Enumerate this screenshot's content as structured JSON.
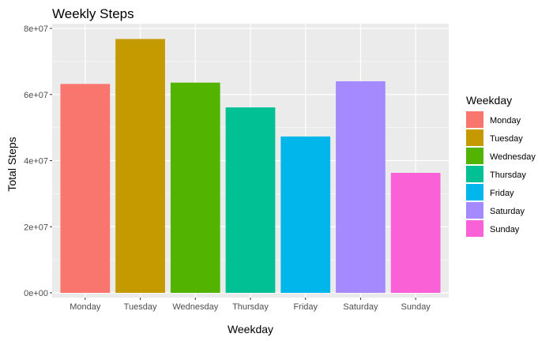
{
  "chart_data": {
    "type": "bar",
    "title": "Weekly Steps",
    "xlabel": "Weekday",
    "ylabel": "Total Steps",
    "categories": [
      "Monday",
      "Tuesday",
      "Wednesday",
      "Thursday",
      "Friday",
      "Saturday",
      "Sunday"
    ],
    "values": [
      63200000,
      76800000,
      63600000,
      56100000,
      47300000,
      64000000,
      36300000
    ],
    "colors": [
      "#F8766D",
      "#C49A00",
      "#53B400",
      "#00C094",
      "#00B6EB",
      "#A58AFF",
      "#FB61D7"
    ],
    "ylim": [
      0,
      80000000
    ],
    "y_ticks": [
      0,
      20000000,
      40000000,
      60000000,
      80000000
    ],
    "y_tick_labels": [
      "0e+00",
      "2e+07",
      "4e+07",
      "6e+07",
      "8e+07"
    ],
    "grid": true,
    "legend": {
      "title": "Weekday",
      "placement": "right",
      "entries": [
        "Monday",
        "Tuesday",
        "Wednesday",
        "Thursday",
        "Friday",
        "Saturday",
        "Sunday"
      ]
    }
  }
}
